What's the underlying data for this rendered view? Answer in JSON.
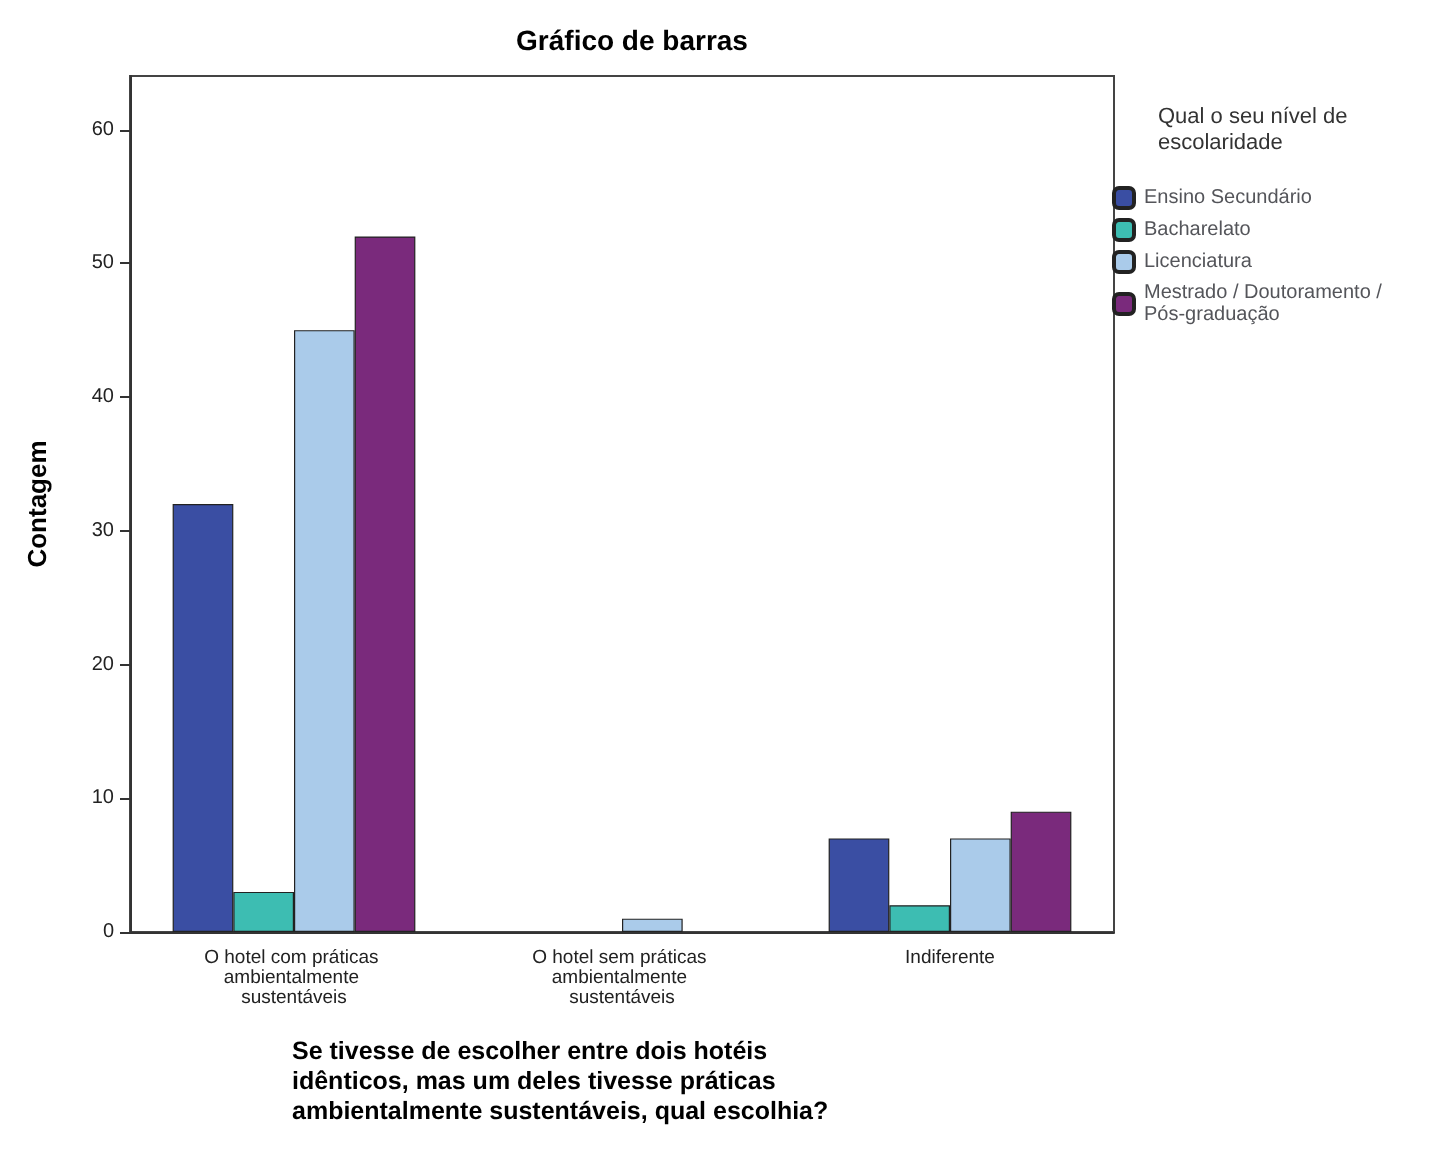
{
  "chart_data": {
    "type": "bar",
    "title": "Gráfico de barras",
    "xlabel": "Se tivesse de escolher entre dois hotéis idênticos, mas um deles tivesse práticas ambientalmente sustentáveis, qual escolhia?",
    "ylabel": "Contagem",
    "legend_title": "Qual o seu nível de escolaridade",
    "categories": [
      "O hotel com práticas ambientalmente sustentáveis",
      "O hotel sem práticas ambientalmente sustentáveis",
      "Indiferente"
    ],
    "series": [
      {
        "name": "Ensino Secundário",
        "color": "#3a4ea3",
        "values": [
          32,
          null,
          7
        ]
      },
      {
        "name": "Bacharelato",
        "color": "#3dbdb2",
        "values": [
          3,
          null,
          2
        ]
      },
      {
        "name": "Licenciatura",
        "color": "#aacbea",
        "values": [
          45,
          1,
          7
        ]
      },
      {
        "name": "Mestrado / Doutoramento / Pós-graduação",
        "color": "#7a2a7c",
        "values": [
          52,
          null,
          9
        ]
      }
    ],
    "ylim": [
      0,
      64
    ],
    "yticks": [
      0,
      10,
      20,
      30,
      40,
      50,
      60
    ],
    "grid": false,
    "legend": "right"
  }
}
